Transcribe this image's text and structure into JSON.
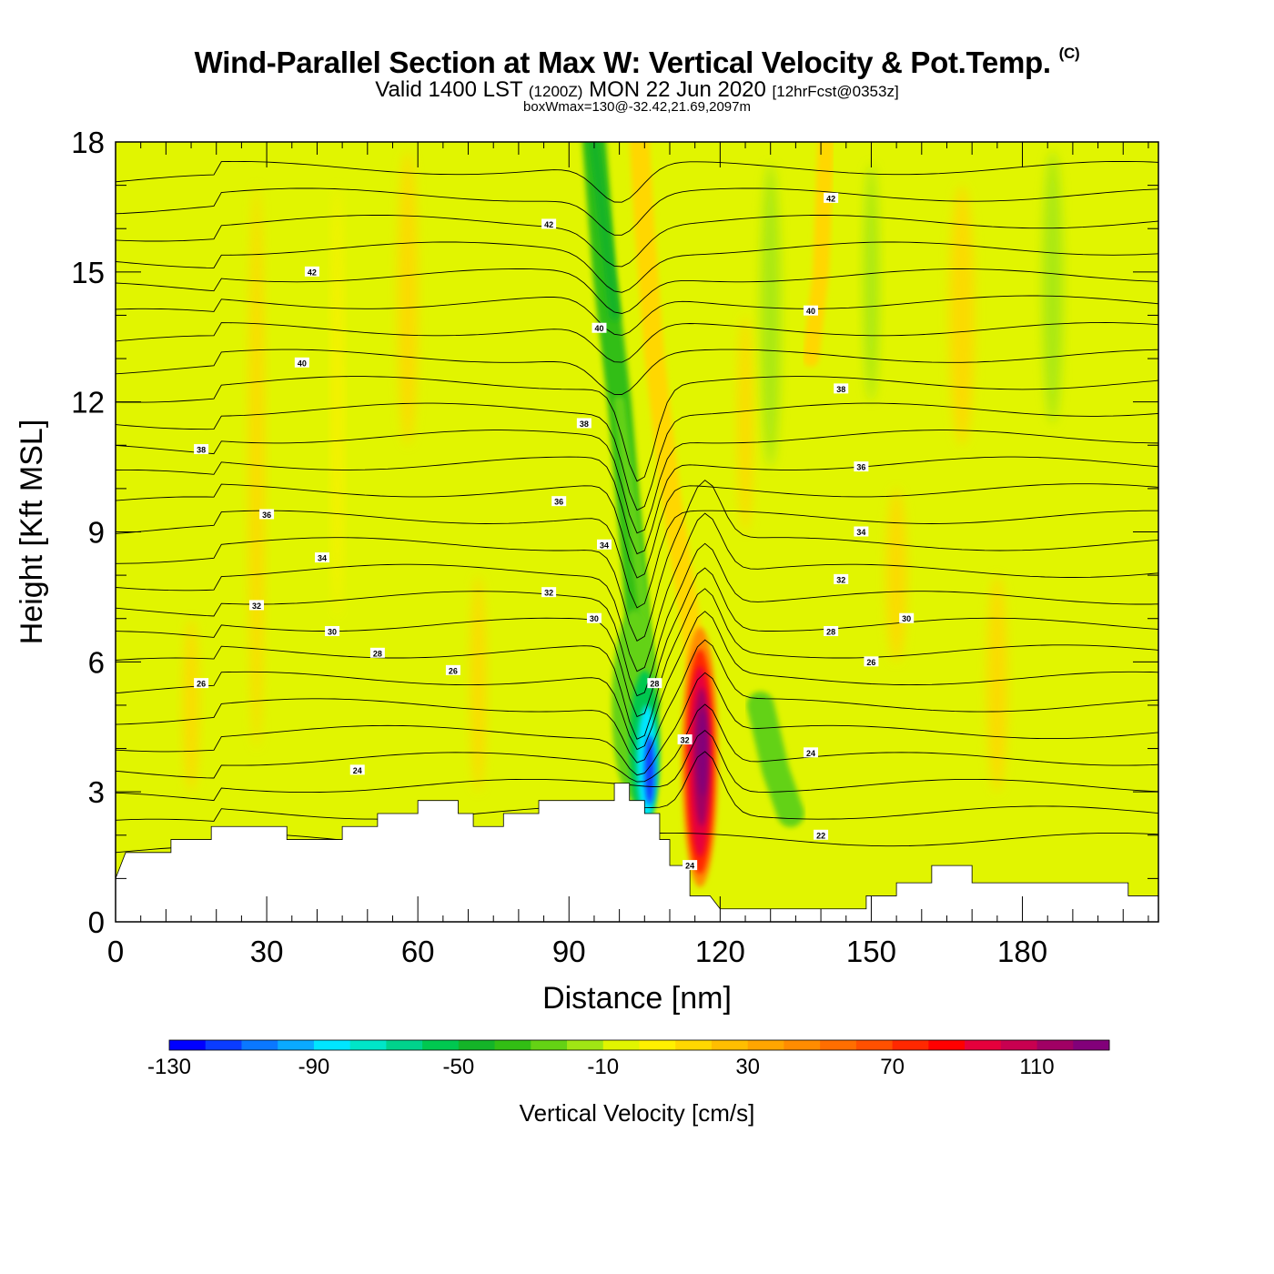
{
  "title": "Wind-Parallel Section at Max W: Vertical Velocity & Pot.Temp.",
  "copyright_mark": "(C)",
  "subtitle": {
    "valid": "Valid 1400 LST",
    "utc": "(1200Z)",
    "date": "MON 22 Jun 2020",
    "forecast": "[12hrFcst@0353z]"
  },
  "box_wmax": "boxWmax=130@-32.42,21.69,2097m",
  "chart_data": {
    "type": "heatmap",
    "xlabel": "Distance [nm]",
    "ylabel": "Height [Kft MSL]",
    "xlim": [
      0,
      207
    ],
    "ylim": [
      0,
      18
    ],
    "x_ticks": [
      0,
      30,
      60,
      90,
      120,
      150,
      180
    ],
    "y_ticks": [
      0,
      3,
      6,
      9,
      12,
      15,
      18
    ],
    "x_tick_labels": [
      "0",
      "30",
      "60",
      "90",
      "120",
      "150",
      "180"
    ],
    "y_tick_labels": [
      "0",
      "3",
      "6",
      "9",
      "12",
      "15",
      "18"
    ],
    "terrain_kft": [
      [
        0,
        1.0
      ],
      [
        2,
        1.6
      ],
      [
        11,
        1.6
      ],
      [
        11,
        1.9
      ],
      [
        19,
        1.9
      ],
      [
        19,
        2.2
      ],
      [
        34,
        2.2
      ],
      [
        34,
        1.9
      ],
      [
        45,
        1.9
      ],
      [
        45,
        2.2
      ],
      [
        52,
        2.2
      ],
      [
        52,
        2.5
      ],
      [
        60,
        2.5
      ],
      [
        60,
        2.8
      ],
      [
        68,
        2.8
      ],
      [
        68,
        2.5
      ],
      [
        71,
        2.5
      ],
      [
        71,
        2.2
      ],
      [
        77,
        2.2
      ],
      [
        77,
        2.5
      ],
      [
        84,
        2.5
      ],
      [
        84,
        2.8
      ],
      [
        99,
        2.8
      ],
      [
        99,
        3.2
      ],
      [
        102,
        3.2
      ],
      [
        102,
        2.8
      ],
      [
        105,
        2.8
      ],
      [
        105,
        2.5
      ],
      [
        108,
        2.5
      ],
      [
        108,
        1.9
      ],
      [
        110,
        1.9
      ],
      [
        110,
        1.3
      ],
      [
        114,
        1.3
      ],
      [
        114,
        0.6
      ],
      [
        118,
        0.6
      ],
      [
        120,
        0.3
      ],
      [
        149,
        0.3
      ],
      [
        149,
        0.6
      ],
      [
        155,
        0.6
      ],
      [
        155,
        0.9
      ],
      [
        162,
        0.9
      ],
      [
        162,
        1.3
      ],
      [
        170,
        1.3
      ],
      [
        170,
        0.9
      ],
      [
        201,
        0.9
      ],
      [
        201,
        0.6
      ],
      [
        207,
        0.6
      ]
    ],
    "w_features_cm_s": [
      {
        "x": 106,
        "y": 3.6,
        "value": -115
      },
      {
        "x": 116,
        "y": 3.6,
        "value": 130
      },
      {
        "x": 96,
        "y": 16.5,
        "value": -40
      },
      {
        "x": 106,
        "y": 15.5,
        "value": 25
      },
      {
        "x": 141,
        "y": 15.5,
        "value": 25
      },
      {
        "x": 130,
        "y": 3.8,
        "value": -20
      }
    ],
    "theta_contour_labels": [
      {
        "x": 17,
        "y": 5.5,
        "text": "26"
      },
      {
        "x": 67,
        "y": 5.8,
        "text": "26"
      },
      {
        "x": 52,
        "y": 6.2,
        "text": "28"
      },
      {
        "x": 43,
        "y": 6.7,
        "text": "30"
      },
      {
        "x": 28,
        "y": 7.3,
        "text": "32"
      },
      {
        "x": 41,
        "y": 8.4,
        "text": "34"
      },
      {
        "x": 30,
        "y": 9.4,
        "text": "36"
      },
      {
        "x": 17,
        "y": 10.9,
        "text": "38"
      },
      {
        "x": 37,
        "y": 12.9,
        "text": "40"
      },
      {
        "x": 39,
        "y": 15.0,
        "text": "42"
      },
      {
        "x": 86,
        "y": 7.6,
        "text": "32"
      },
      {
        "x": 95,
        "y": 7.0,
        "text": "30"
      },
      {
        "x": 88,
        "y": 9.7,
        "text": "36"
      },
      {
        "x": 97,
        "y": 8.7,
        "text": "34"
      },
      {
        "x": 93,
        "y": 11.5,
        "text": "38"
      },
      {
        "x": 96,
        "y": 13.7,
        "text": "40"
      },
      {
        "x": 86,
        "y": 16.1,
        "text": "42"
      },
      {
        "x": 107,
        "y": 5.5,
        "text": "28"
      },
      {
        "x": 113,
        "y": 4.2,
        "text": "32"
      },
      {
        "x": 114,
        "y": 1.3,
        "text": "24"
      },
      {
        "x": 48,
        "y": 3.5,
        "text": "24"
      },
      {
        "x": 138,
        "y": 3.9,
        "text": "24"
      },
      {
        "x": 140,
        "y": 2.0,
        "text": "22"
      },
      {
        "x": 142,
        "y": 6.7,
        "text": "28"
      },
      {
        "x": 150,
        "y": 6.0,
        "text": "26"
      },
      {
        "x": 157,
        "y": 7.0,
        "text": "30"
      },
      {
        "x": 144,
        "y": 7.9,
        "text": "32"
      },
      {
        "x": 148,
        "y": 9.0,
        "text": "34"
      },
      {
        "x": 148,
        "y": 10.5,
        "text": "36"
      },
      {
        "x": 144,
        "y": 12.3,
        "text": "38"
      },
      {
        "x": 138,
        "y": 14.1,
        "text": "40"
      },
      {
        "x": 142,
        "y": 16.7,
        "text": "42"
      }
    ],
    "colorbar": {
      "title": "Vertical Velocity [cm/s]",
      "min": -130,
      "max": 130,
      "step": 10,
      "tick_values": [
        -130,
        -90,
        -50,
        -10,
        30,
        70,
        110
      ],
      "tick_labels": [
        "-130",
        "-90",
        "-50",
        "-10",
        "30",
        "70",
        "110"
      ],
      "colors": [
        "#0000ff",
        "#0a3cff",
        "#0a78ff",
        "#0aaaff",
        "#00e6ff",
        "#00e6c8",
        "#00d28c",
        "#00c850",
        "#14b428",
        "#32be14",
        "#64d214",
        "#a0e614",
        "#e1f500",
        "#fff000",
        "#ffd700",
        "#ffbe00",
        "#ffa500",
        "#ff8c00",
        "#ff6e00",
        "#ff5000",
        "#ff2800",
        "#ff0000",
        "#e6003c",
        "#c80050",
        "#a00064",
        "#82007a"
      ]
    }
  }
}
